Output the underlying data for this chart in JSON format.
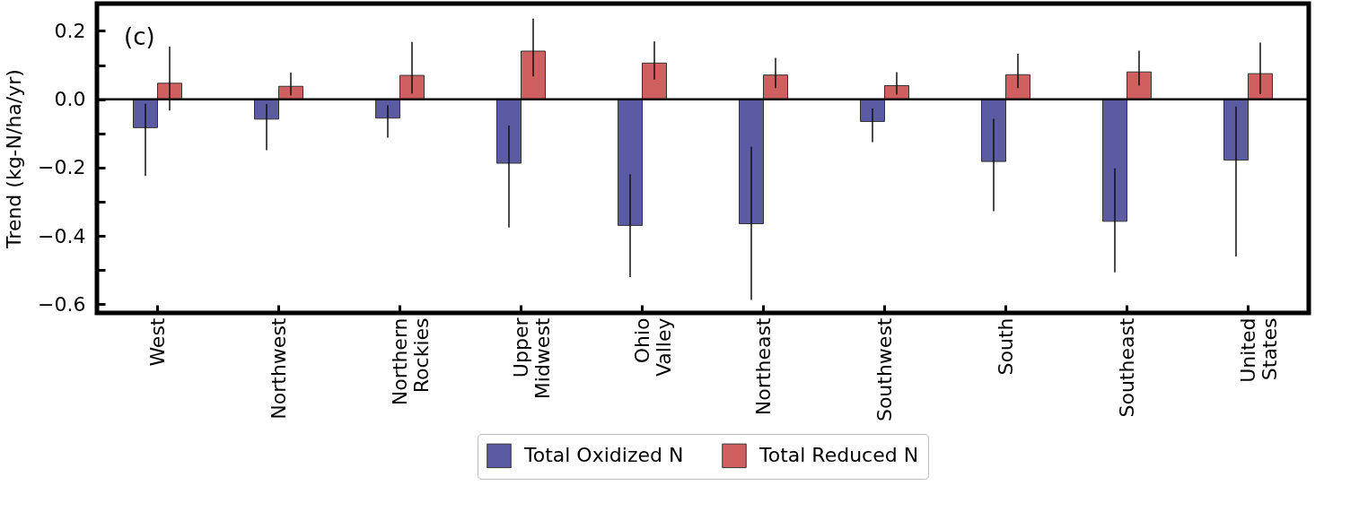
{
  "chart_data": {
    "type": "bar",
    "ylabel": "Trend (kg-N/ha/yr)",
    "categories": [
      "West",
      "Northwest",
      "Northern Rockies",
      "Upper Midwest",
      "Ohio Valley",
      "Northeast",
      "Southwest",
      "South",
      "Southeast",
      "United States"
    ],
    "series": [
      {
        "name": "Total Oxidized N",
        "color": "#5b5ba3",
        "values": [
          -0.083,
          -0.058,
          -0.055,
          -0.187,
          -0.369,
          -0.364,
          -0.065,
          -0.182,
          -0.357,
          -0.178
        ],
        "errors": [
          [
            -0.224,
            -0.013
          ],
          [
            -0.149,
            -0.014
          ],
          [
            -0.112,
            -0.018
          ],
          [
            -0.375,
            -0.077
          ],
          [
            -0.52,
            -0.22
          ],
          [
            -0.587,
            -0.139
          ],
          [
            -0.125,
            -0.027
          ],
          [
            -0.327,
            -0.057
          ],
          [
            -0.506,
            -0.202
          ],
          [
            -0.46,
            -0.021
          ]
        ]
      },
      {
        "name": "Total Reduced N",
        "color": "#d06060",
        "values": [
          0.047,
          0.038,
          0.07,
          0.141,
          0.106,
          0.071,
          0.04,
          0.072,
          0.08,
          0.075
        ],
        "errors": [
          [
            -0.033,
            0.154
          ],
          [
            0.011,
            0.078
          ],
          [
            0.017,
            0.168
          ],
          [
            0.067,
            0.236
          ],
          [
            0.058,
            0.169
          ],
          [
            0.033,
            0.121
          ],
          [
            0.014,
            0.079
          ],
          [
            0.033,
            0.133
          ],
          [
            0.04,
            0.142
          ],
          [
            0.015,
            0.166
          ]
        ]
      }
    ],
    "ylim": [
      -0.625,
      0.28
    ],
    "yticks": [
      {
        "value": -0.6,
        "label": "−0.6"
      },
      {
        "value": -0.5,
        "label": null
      },
      {
        "value": -0.4,
        "label": "−0.4"
      },
      {
        "value": -0.3,
        "label": null
      },
      {
        "value": -0.2,
        "label": "−0.2"
      },
      {
        "value": -0.1,
        "label": null
      },
      {
        "value": 0,
        "label": "0.0"
      },
      {
        "value": 0.1,
        "label": null
      },
      {
        "value": 0.2,
        "label": "0.2"
      }
    ],
    "ref_lines": [
      {
        "axis": "y",
        "value": 0,
        "color": "#000000"
      }
    ],
    "annotations": [
      "(c)"
    ],
    "grid": false,
    "legend": "bottom"
  }
}
